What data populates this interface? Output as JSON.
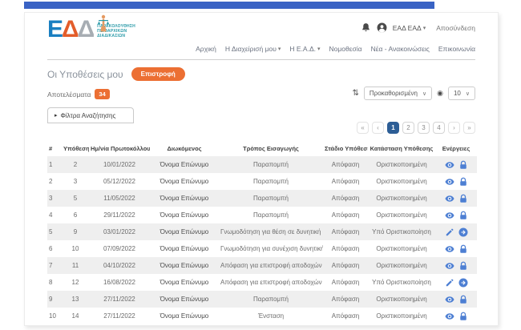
{
  "colors": {
    "topbar_blue": "#3a63c4",
    "accent_orange": "#ec6f33",
    "icon_blue": "#4d7fd3",
    "active_page_blue": "#2d5e96",
    "logo_teal": "#2a9aa8"
  },
  "logo": {
    "letters": [
      "Ε",
      "Δ",
      "Δ"
    ],
    "text_lines": [
      "ΠΑΡΑΚΟΛΟΥΘΗΣΗ",
      "ΠΕΙΘΑΡΧΙΚΩΝ",
      "ΔΙΑΔΙΚΑΣΙΩΝ"
    ]
  },
  "account": {
    "name": "ΕΑΔ ΕΑΔ",
    "caret": "▾",
    "logout": "Αποσύνδεση",
    "icons": [
      "bell-icon",
      "avatar-icon"
    ]
  },
  "nav": {
    "items": [
      {
        "label": "Αρχική",
        "has_dropdown": false
      },
      {
        "label": "Η Διαχείρισή μου",
        "has_dropdown": true
      },
      {
        "label": "Η Ε.Α.Δ.",
        "has_dropdown": true
      },
      {
        "label": "Νομοθεσία",
        "has_dropdown": false
      },
      {
        "label": "Νέα - Ανακοινώσεις",
        "has_dropdown": false
      },
      {
        "label": "Επικοινωνία",
        "has_dropdown": false
      }
    ],
    "dropdown_caret": "▾"
  },
  "page": {
    "title": "Οι Υποθέσεις μου",
    "back_button": "Επιστροφή",
    "results_label": "Αποτελέσματα",
    "results_count": "34",
    "filters_tab_arrow": "▸",
    "filters_tab": "Φίλτρα Αναζήτησης"
  },
  "controls": {
    "sort_glyph": "⇅",
    "sort_value": "Προκαθορισμένη",
    "sort_caret": "∨",
    "page_size_icon": "◉",
    "page_size_value": "10",
    "page_size_caret": "∨"
  },
  "pagination": {
    "first": "«",
    "prev": "‹",
    "pages": [
      "1",
      "2",
      "3",
      "4"
    ],
    "active": "1",
    "next": "›",
    "last": "»"
  },
  "table": {
    "headers": [
      "#",
      "Υπόθεση",
      "Ημ/νία Πρωτοκόλλου",
      "Διωκόμενος",
      "Τρόπος Εισαγωγής",
      "Στάδιο Υπόθεσης",
      "Κατάσταση Υπόθεσης",
      "Ενέργειες"
    ],
    "rows": [
      {
        "num": "1",
        "case": "2",
        "date": "10/01/2022",
        "defendant": "Όνομα Επώνυμο",
        "entry": "Παραπομπή",
        "stage": "Απόφαση",
        "status": "Οριστικοποιημένη",
        "actions": [
          "eye",
          "lock"
        ]
      },
      {
        "num": "2",
        "case": "3",
        "date": "05/12/2022",
        "defendant": "Όνομα Επώνυμο",
        "entry": "Παραπομπή",
        "stage": "Απόφαση",
        "status": "Οριστικοποιημένη",
        "actions": [
          "eye",
          "lock"
        ]
      },
      {
        "num": "3",
        "case": "5",
        "date": "11/05/2022",
        "defendant": "Όνομα Επώνυμο",
        "entry": "Παραπομπή",
        "stage": "Απόφαση",
        "status": "Οριστικοποιημένη",
        "actions": [
          "eye",
          "lock"
        ]
      },
      {
        "num": "4",
        "case": "6",
        "date": "29/11/2022",
        "defendant": "Όνομα Επώνυμο",
        "entry": "Παραπομπή",
        "stage": "Απόφαση",
        "status": "Οριστικοποιημένη",
        "actions": [
          "eye",
          "lock"
        ]
      },
      {
        "num": "5",
        "case": "9",
        "date": "03/01/2022",
        "defendant": "Όνομα Επώνυμο",
        "entry": "Γνωμοδότηση για θέση σε δυνητική αργία",
        "stage": "Απόφαση",
        "status": "Υπό Οριστικοποίηση",
        "actions": [
          "pencil",
          "arrow"
        ]
      },
      {
        "num": "6",
        "case": "10",
        "date": "07/09/2022",
        "defendant": "Όνομα Επώνυμο",
        "entry": "Γνωμοδότηση για συνέχιση δυνητικής αργίας",
        "stage": "Απόφαση",
        "status": "Οριστικοποιημένη",
        "actions": [
          "eye",
          "lock"
        ]
      },
      {
        "num": "7",
        "case": "11",
        "date": "04/10/2022",
        "defendant": "Όνομα Επώνυμο",
        "entry": "Απόφαση για επιστροφή αποδοχών αργίας",
        "stage": "Απόφαση",
        "status": "Οριστικοποιημένη",
        "actions": [
          "eye",
          "lock"
        ]
      },
      {
        "num": "8",
        "case": "12",
        "date": "16/08/2022",
        "defendant": "Όνομα Επώνυμο",
        "entry": "Απόφαση για επιστροφή αποδοχών αργίας",
        "stage": "Απόφαση",
        "status": "Υπό Οριστικοποίηση",
        "actions": [
          "pencil",
          "arrow"
        ]
      },
      {
        "num": "9",
        "case": "13",
        "date": "27/11/2022",
        "defendant": "Όνομα Επώνυμο",
        "entry": "Παραπομπή",
        "stage": "Απόφαση",
        "status": "Οριστικοποιημένη",
        "actions": [
          "eye",
          "lock"
        ]
      },
      {
        "num": "10",
        "case": "14",
        "date": "27/11/2022",
        "defendant": "Όνομα Επώνυμο",
        "entry": "Ένσταση",
        "stage": "Απόφαση",
        "status": "Οριστικοποιημένη",
        "actions": [
          "eye",
          "lock"
        ]
      }
    ]
  }
}
